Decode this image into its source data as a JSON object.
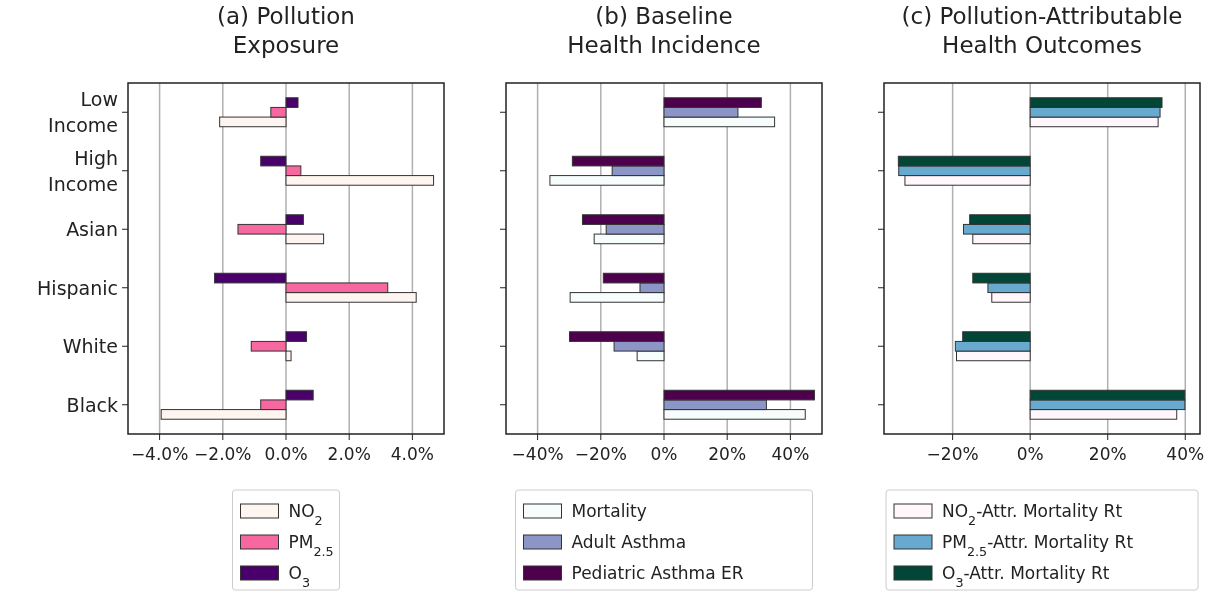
{
  "chart_data": [
    {
      "type": "bar",
      "orientation": "horizontal",
      "title": "(a) Pollution\nExposure",
      "categories": [
        "Low\nIncome",
        "High\nIncome",
        "Asian",
        "Hispanic",
        "White",
        "Black"
      ],
      "xlim": [
        -5,
        5
      ],
      "xticks": [
        {
          "value": -4,
          "label": "−4.0%"
        },
        {
          "value": -2,
          "label": "−2.0%"
        },
        {
          "value": 0,
          "label": "0.0%"
        },
        {
          "value": 2,
          "label": "2.0%"
        },
        {
          "value": 4,
          "label": "4.0%"
        }
      ],
      "grid": "x",
      "legend": "bottom",
      "series": [
        {
          "name": "NO$_{2}$",
          "color": "#fff5f0",
          "values": [
            -2.1,
            4.67,
            1.19,
            4.12,
            0.16,
            -3.95
          ]
        },
        {
          "name": "PM$_{2.5}$",
          "color": "#f768a1",
          "values": [
            -0.48,
            0.47,
            -1.52,
            3.22,
            -1.1,
            -0.8
          ]
        },
        {
          "name": "O$_{3}$",
          "color": "#49006a",
          "values": [
            0.38,
            -0.8,
            0.55,
            -2.26,
            0.65,
            0.86
          ]
        }
      ]
    },
    {
      "type": "bar",
      "orientation": "horizontal",
      "title": "(b) Baseline\nHealth Incidence",
      "categories": [
        null,
        null,
        null,
        null,
        null,
        null
      ],
      "xlim": [
        -50,
        50
      ],
      "xticks": [
        {
          "value": -40,
          "label": "−40%"
        },
        {
          "value": -20,
          "label": "−20%"
        },
        {
          "value": 0,
          "label": "0%"
        },
        {
          "value": 20,
          "label": "20%"
        },
        {
          "value": 40,
          "label": "40%"
        }
      ],
      "grid": "x",
      "legend": "bottom",
      "tick_labels": "x",
      "series": [
        {
          "name": "Mortality",
          "color": "#f7fcfd",
          "values": [
            35,
            -36.1,
            -22.1,
            -29.7,
            -8.5,
            44.7
          ]
        },
        {
          "name": "Adult Asthma",
          "color": "#8c96c6",
          "values": [
            23.4,
            -16.4,
            -18.3,
            -7.6,
            -15.8,
            32.4
          ]
        },
        {
          "name": "Pediatric Asthma ER",
          "color": "#4d004b",
          "values": [
            30.8,
            -29,
            -25.8,
            -19.2,
            -29.9,
            47.6
          ]
        }
      ]
    },
    {
      "type": "bar",
      "orientation": "horizontal",
      "title": "(c) Pollution-Attributable\nHealth Outcomes",
      "categories": [
        null,
        null,
        null,
        null,
        null,
        null
      ],
      "xlim": [
        -37.7,
        43.8
      ],
      "xticks": [
        {
          "value": -20,
          "label": "−20%"
        },
        {
          "value": 0,
          "label": "0%"
        },
        {
          "value": 20,
          "label": "20%"
        },
        {
          "value": 40,
          "label": "40%"
        }
      ],
      "grid": "x",
      "legend": "bottom",
      "tick_labels": "x",
      "series": [
        {
          "name": "NO$_{2}$-Attr. Mortality Rt",
          "color": "#fff7fb",
          "values": [
            33,
            -32.3,
            -14.8,
            -9.9,
            -19,
            37.8
          ]
        },
        {
          "name": "PM$_{2.5}$-Attr. Mortality Rt",
          "color": "#67a9cf",
          "values": [
            33.5,
            -33.9,
            -17.2,
            -10.9,
            -19.3,
            39.9
          ]
        },
        {
          "name": "O$_{3}$-Attr. Mortality Rt",
          "color": "#014636",
          "values": [
            34,
            -34,
            -15.6,
            -14.8,
            -17.4,
            39.9
          ]
        }
      ]
    }
  ]
}
